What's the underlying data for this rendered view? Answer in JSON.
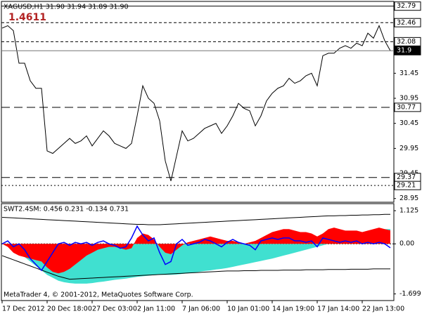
{
  "chart_data": [
    {
      "type": "line",
      "title": "XAGUSD,H1  31.90 31.94 31.89 31.90",
      "annotation": "1.4611",
      "color": "#000000",
      "categories": [
        "17 Dec 2012",
        null,
        null,
        null,
        null,
        null,
        null,
        null,
        "20 Dec 18:00",
        null,
        null,
        null,
        null,
        null,
        null,
        null,
        "27 Dec 03:00",
        null,
        null,
        null,
        null,
        null,
        null,
        null,
        "2 Jan 11:00",
        null,
        null,
        null,
        null,
        null,
        null,
        null,
        "7 Jan 06:00",
        null,
        null,
        null,
        null,
        null,
        null,
        null,
        "10 Jan 01:00",
        null,
        null,
        null,
        null,
        null,
        null,
        null,
        "14 Jan 19:00",
        null,
        null,
        null,
        null,
        null,
        null,
        null,
        "17 Jan 14:00",
        null,
        null,
        null,
        null,
        null,
        null,
        null,
        "22 Jan 13:00",
        null,
        null,
        null,
        null,
        null
      ],
      "values": [
        32.35,
        32.4,
        32.3,
        31.65,
        31.65,
        31.3,
        31.15,
        31.15,
        29.9,
        29.85,
        29.95,
        30.05,
        30.15,
        30.05,
        30.1,
        30.2,
        30.0,
        30.15,
        30.3,
        30.2,
        30.05,
        30.0,
        29.95,
        30.05,
        30.6,
        31.2,
        30.95,
        30.85,
        30.5,
        29.7,
        29.3,
        29.8,
        30.3,
        30.1,
        30.15,
        30.25,
        30.35,
        30.4,
        30.45,
        30.25,
        30.4,
        30.6,
        30.85,
        30.75,
        30.7,
        30.4,
        30.6,
        30.9,
        31.05,
        31.15,
        31.2,
        31.35,
        31.25,
        31.3,
        31.4,
        31.45,
        31.2,
        31.8,
        31.85,
        31.85,
        31.95,
        32.0,
        31.95,
        32.05,
        32.0,
        32.25,
        32.15,
        32.4,
        32.1,
        31.9
      ],
      "ylim": [
        28.89,
        32.87
      ],
      "yticks": [
        31.45,
        30.95,
        30.45,
        29.95,
        29.45,
        28.95
      ],
      "levels": [
        {
          "value": 32.79,
          "style": "solid"
        },
        {
          "value": 32.46,
          "style": "dashed"
        },
        {
          "value": 32.08,
          "style": "dashed"
        },
        {
          "value": 31.9,
          "style": "current"
        },
        {
          "value": 30.77,
          "style": "longdash"
        },
        {
          "value": 29.37,
          "style": "longdash"
        },
        {
          "value": 29.21,
          "style": "dotted"
        }
      ]
    },
    {
      "type": "area",
      "title": "SWT2.4SM:  0.456 0.231 -0.134 0.731",
      "ylim": [
        -1.9,
        1.34
      ],
      "yticks": [
        1.125,
        {
          "value": 0,
          "label": "0.00"
        },
        -1.699
      ],
      "series": [
        {
          "kind": "area",
          "color": "#40e0d0",
          "values": [
            0,
            -0.05,
            -0.15,
            -0.3,
            -0.45,
            -0.6,
            -0.75,
            -0.9,
            -1.05,
            -1.15,
            -1.25,
            -1.3,
            -1.33,
            -1.35,
            -1.35,
            -1.35,
            -1.33,
            -1.3,
            -1.28,
            -1.25,
            -1.22,
            -1.2,
            -1.18,
            -1.15,
            -1.12,
            -1.1,
            -1.08,
            -1.06,
            -1.05,
            -1.05,
            -1.05,
            -1.04,
            -1.02,
            -1.0,
            -0.98,
            -0.95,
            -0.92,
            -0.9,
            -0.87,
            -0.85,
            -0.82,
            -0.78,
            -0.74,
            -0.7,
            -0.66,
            -0.62,
            -0.58,
            -0.54,
            -0.5,
            -0.45,
            -0.4,
            -0.35,
            -0.3,
            -0.25,
            -0.2,
            -0.15,
            -0.1,
            -0.05,
            0,
            0.05,
            0.1,
            0.15,
            0.2,
            0.25,
            0.3,
            0.35,
            0.4,
            0.45,
            0.5,
            0.5
          ]
        },
        {
          "kind": "area",
          "color": "#ff0000",
          "values": [
            0,
            -0.1,
            -0.3,
            -0.4,
            -0.45,
            -0.5,
            -0.55,
            -0.6,
            -0.8,
            -0.95,
            -1.0,
            -0.95,
            -0.85,
            -0.7,
            -0.55,
            -0.4,
            -0.3,
            -0.2,
            -0.15,
            -0.1,
            -0.1,
            -0.15,
            -0.2,
            -0.15,
            0.2,
            0.35,
            0.3,
            0.15,
            -0.1,
            -0.3,
            -0.35,
            -0.2,
            -0.05,
            0.05,
            0.1,
            0.15,
            0.2,
            0.25,
            0.2,
            0.15,
            0.1,
            0.1,
            0.05,
            0,
            0.05,
            0.1,
            0.2,
            0.3,
            0.4,
            0.45,
            0.5,
            0.5,
            0.45,
            0.4,
            0.4,
            0.35,
            0.25,
            0.35,
            0.5,
            0.55,
            0.5,
            0.45,
            0.45,
            0.45,
            0.4,
            0.45,
            0.5,
            0.55,
            0.5,
            0.456
          ]
        },
        {
          "kind": "line",
          "color": "#000000",
          "values": [
            0.9,
            0.89,
            0.88,
            0.87,
            0.86,
            0.85,
            0.84,
            0.83,
            0.82,
            0.81,
            0.8,
            0.79,
            0.78,
            0.77,
            0.76,
            0.75,
            0.74,
            0.73,
            0.72,
            0.71,
            0.7,
            0.69,
            0.68,
            0.67,
            0.66,
            0.66,
            0.65,
            0.65,
            0.65,
            0.66,
            0.67,
            0.68,
            0.69,
            0.7,
            0.71,
            0.72,
            0.73,
            0.74,
            0.75,
            0.76,
            0.77,
            0.78,
            0.79,
            0.8,
            0.81,
            0.82,
            0.83,
            0.84,
            0.85,
            0.86,
            0.87,
            0.88,
            0.89,
            0.9,
            0.91,
            0.92,
            0.93,
            0.94,
            0.95,
            0.95,
            0.96,
            0.96,
            0.97,
            0.97,
            0.98,
            0.98,
            0.99,
            0.99,
            1.0,
            1.0
          ]
        },
        {
          "kind": "line",
          "color": "#000000",
          "values": [
            -0.4,
            -0.47,
            -0.54,
            -0.61,
            -0.68,
            -0.75,
            -0.82,
            -0.89,
            -0.96,
            -1.03,
            -1.1,
            -1.15,
            -1.2,
            -1.19,
            -1.18,
            -1.17,
            -1.16,
            -1.15,
            -1.14,
            -1.13,
            -1.12,
            -1.11,
            -1.1,
            -1.09,
            -1.08,
            -1.07,
            -1.06,
            -1.05,
            -1.04,
            -1.03,
            -1.02,
            -1.01,
            -1.0,
            -0.99,
            -0.98,
            -0.97,
            -0.96,
            -0.95,
            -0.94,
            -0.93,
            -0.92,
            -0.92,
            -0.92,
            -0.91,
            -0.91,
            -0.91,
            -0.9,
            -0.9,
            -0.9,
            -0.9,
            -0.89,
            -0.89,
            -0.89,
            -0.89,
            -0.88,
            -0.88,
            -0.88,
            -0.88,
            -0.87,
            -0.87,
            -0.87,
            -0.87,
            -0.86,
            -0.86,
            -0.86,
            -0.86,
            -0.85,
            -0.85,
            -0.85,
            -0.85
          ]
        },
        {
          "kind": "line",
          "color": "#0000ff",
          "values": [
            0,
            0.1,
            -0.1,
            0,
            -0.2,
            -0.5,
            -0.7,
            -0.9,
            -0.6,
            -0.3,
            0,
            0.05,
            -0.05,
            0.05,
            0,
            0.05,
            -0.05,
            0.05,
            0.1,
            0,
            -0.05,
            -0.15,
            -0.1,
            0.2,
            0.6,
            0.3,
            0.1,
            0.2,
            -0.3,
            -0.7,
            -0.6,
            0,
            0.15,
            -0.05,
            0,
            0.05,
            0.15,
            0.1,
            0,
            -0.1,
            0.05,
            0.15,
            0.05,
            0,
            -0.05,
            -0.2,
            0.1,
            0.15,
            0.2,
            0.15,
            0.2,
            0.2,
            0.1,
            0.1,
            0.05,
            0.1,
            -0.1,
            0.2,
            0.15,
            0.1,
            0.05,
            0.1,
            0.05,
            0.1,
            0,
            0.05,
            0,
            0.05,
            0,
            -0.134
          ]
        }
      ]
    }
  ],
  "footer": "MetaTrader 4, © 2001-2012, MetaQuotes Software Corp."
}
